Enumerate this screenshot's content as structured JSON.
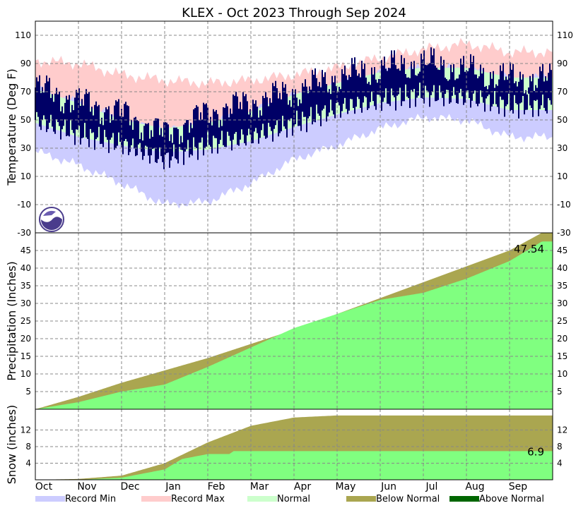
{
  "chart_data": {
    "type": "area",
    "title": "KLEX - Oct 2023 Through Sep 2024",
    "months": [
      "Oct",
      "Nov",
      "Dec",
      "Jan",
      "Feb",
      "Mar",
      "Apr",
      "May",
      "Jun",
      "Jul",
      "Aug",
      "Sep"
    ],
    "legend": [
      {
        "label": "Record Min",
        "color": "#ccccff"
      },
      {
        "label": "Record Max",
        "color": "#ffcccc"
      },
      {
        "label": "Normal",
        "color": "#ccffcc"
      },
      {
        "label": "Below Normal",
        "color": "#aaa650"
      },
      {
        "label": "Above Normal",
        "color": "#006600"
      }
    ],
    "panels": [
      {
        "id": "temperature",
        "ylabel": "Temperature (Deg F)",
        "ylim": [
          -30,
          120
        ],
        "yticks": [
          -30,
          -10,
          10,
          30,
          50,
          70,
          90,
          110
        ],
        "series": [
          {
            "name": "Record Max",
            "color": "#ffcccc",
            "points": [
              [
                0,
                92
              ],
              [
                1,
                90
              ],
              [
                2,
                82
              ],
              [
                3,
                78
              ],
              [
                4,
                76
              ],
              [
                5,
                78
              ],
              [
                6,
                82
              ],
              [
                7,
                87
              ],
              [
                8,
                94
              ],
              [
                9,
                100
              ],
              [
                10,
                104
              ],
              [
                11,
                98
              ]
            ]
          },
          {
            "name": "Record Min",
            "color": "#ccccff",
            "points": [
              [
                0,
                28
              ],
              [
                1,
                18
              ],
              [
                2,
                5
              ],
              [
                3,
                -10
              ],
              [
                4,
                -8
              ],
              [
                5,
                5
              ],
              [
                6,
                22
              ],
              [
                7,
                32
              ],
              [
                8,
                44
              ],
              [
                9,
                52
              ],
              [
                10,
                50
              ],
              [
                11,
                38
              ]
            ]
          },
          {
            "name": "Normal High",
            "color": "#ccffcc",
            "points": [
              [
                0,
                72
              ],
              [
                1,
                62
              ],
              [
                2,
                50
              ],
              [
                3,
                44
              ],
              [
                4,
                48
              ],
              [
                5,
                56
              ],
              [
                6,
                68
              ],
              [
                7,
                76
              ],
              [
                8,
                84
              ],
              [
                9,
                87
              ],
              [
                10,
                87
              ],
              [
                11,
                80
              ]
            ]
          },
          {
            "name": "Normal Low",
            "color": "#ccffcc",
            "points": [
              [
                0,
                48
              ],
              [
                1,
                38
              ],
              [
                2,
                32
              ],
              [
                3,
                27
              ],
              [
                4,
                29
              ],
              [
                5,
                35
              ],
              [
                6,
                45
              ],
              [
                7,
                54
              ],
              [
                8,
                62
              ],
              [
                9,
                66
              ],
              [
                10,
                65
              ],
              [
                11,
                57
              ]
            ]
          },
          {
            "name": "Observed High",
            "color": "#000066",
            "points": [
              [
                0,
                73
              ],
              [
                1,
                63
              ],
              [
                2,
                55
              ],
              [
                3,
                40
              ],
              [
                4,
                55
              ],
              [
                5,
                62
              ],
              [
                6,
                70
              ],
              [
                7,
                80
              ],
              [
                8,
                86
              ],
              [
                9,
                90
              ],
              [
                10,
                85
              ],
              [
                11,
                79
              ]
            ]
          },
          {
            "name": "Observed Low",
            "color": "#000066",
            "points": [
              [
                0,
                50
              ],
              [
                1,
                40
              ],
              [
                2,
                33
              ],
              [
                3,
                22
              ],
              [
                4,
                33
              ],
              [
                5,
                38
              ],
              [
                6,
                47
              ],
              [
                7,
                58
              ],
              [
                8,
                64
              ],
              [
                9,
                68
              ],
              [
                10,
                66
              ],
              [
                11,
                60
              ]
            ]
          }
        ]
      },
      {
        "id": "precipitation",
        "ylabel": "Precipitation (Inches)",
        "ylim": [
          0,
          50
        ],
        "yticks": [
          5,
          10,
          15,
          20,
          25,
          30,
          35,
          40,
          45
        ],
        "annotation": "47.54",
        "series": [
          {
            "name": "Normal",
            "points": [
              [
                0,
                0
              ],
              [
                1,
                3.5
              ],
              [
                2,
                7.5
              ],
              [
                3,
                11
              ],
              [
                4,
                14.5
              ],
              [
                5,
                18.5
              ],
              [
                6,
                22.5
              ],
              [
                7,
                27
              ],
              [
                8,
                31.5
              ],
              [
                9,
                36
              ],
              [
                10,
                40.5
              ],
              [
                11,
                45
              ],
              [
                11.75,
                50
              ]
            ]
          },
          {
            "name": "Observed",
            "points": [
              [
                0,
                0
              ],
              [
                1,
                2
              ],
              [
                2,
                5
              ],
              [
                3,
                7
              ],
              [
                4,
                12
              ],
              [
                5,
                17.5
              ],
              [
                6,
                23
              ],
              [
                7,
                27
              ],
              [
                8,
                31
              ],
              [
                9,
                33
              ],
              [
                10,
                37
              ],
              [
                11,
                42
              ],
              [
                11.75,
                47.54
              ]
            ]
          }
        ]
      },
      {
        "id": "snow",
        "ylabel": "Snow (inches)",
        "ylim": [
          0,
          17
        ],
        "yticks": [
          4,
          8,
          12
        ],
        "annotation": "6.9",
        "series": [
          {
            "name": "Normal",
            "points": [
              [
                0,
                0
              ],
              [
                1,
                0.2
              ],
              [
                2,
                1
              ],
              [
                3,
                4
              ],
              [
                4,
                9
              ],
              [
                5,
                13
              ],
              [
                6,
                15
              ],
              [
                7,
                15.5
              ],
              [
                8,
                15.5
              ],
              [
                11.75,
                15.5
              ]
            ]
          },
          {
            "name": "Observed",
            "points": [
              [
                0,
                0
              ],
              [
                1,
                0
              ],
              [
                2,
                0.5
              ],
              [
                3,
                2.5
              ],
              [
                3.4,
                5
              ],
              [
                4,
                6.2
              ],
              [
                4.5,
                6.2
              ],
              [
                4.6,
                6.9
              ],
              [
                5,
                6.9
              ],
              [
                11.75,
                6.9
              ]
            ]
          }
        ]
      }
    ]
  }
}
